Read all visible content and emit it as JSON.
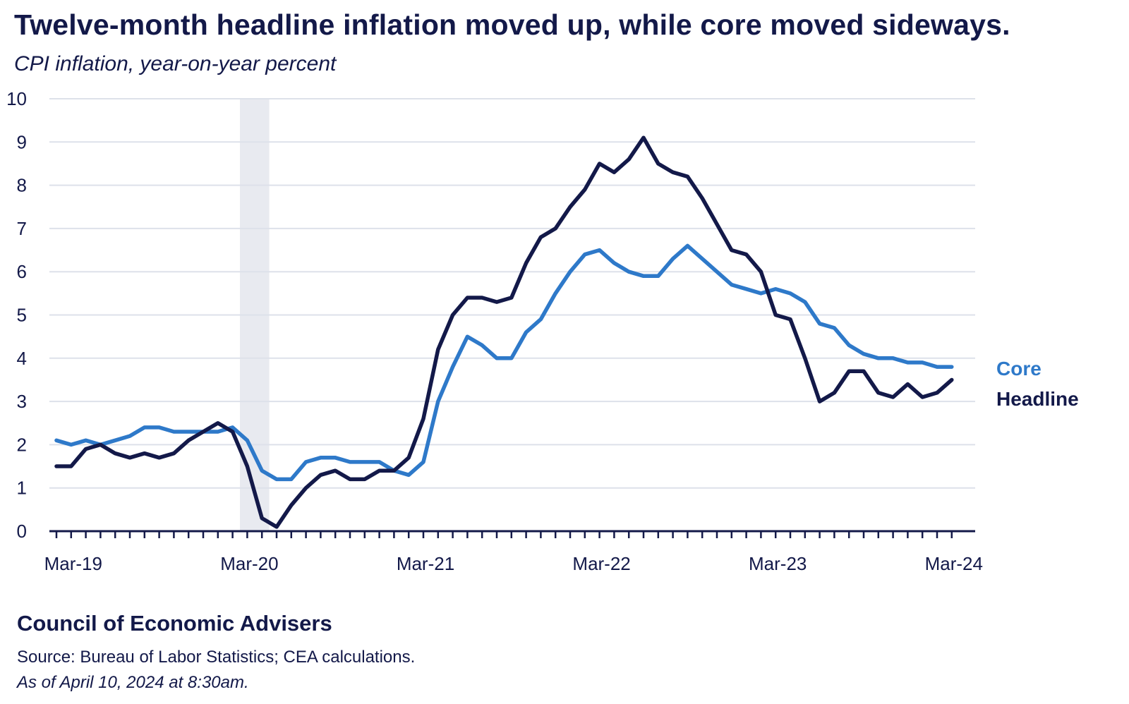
{
  "header": {
    "title": "Twelve-month headline inflation moved up, while core moved sideways.",
    "subtitle": "CPI inflation, year-on-year percent"
  },
  "footer": {
    "org": "Council of Economic Advisers",
    "source": "Source: Bureau of Labor Statistics; CEA calculations.",
    "as_of": "As of April 10, 2024 at 8:30am."
  },
  "colors": {
    "headline": "#131949",
    "core": "#2E79C9",
    "grid": "#DDE1EA",
    "shading": "#E8EAF0",
    "axis": "#131949"
  },
  "chart_data": {
    "type": "line",
    "x": [
      "Feb-19",
      "Mar-19",
      "Apr-19",
      "May-19",
      "Jun-19",
      "Jul-19",
      "Aug-19",
      "Sep-19",
      "Oct-19",
      "Nov-19",
      "Dec-19",
      "Jan-20",
      "Feb-20",
      "Mar-20",
      "Apr-20",
      "May-20",
      "Jun-20",
      "Jul-20",
      "Aug-20",
      "Sep-20",
      "Oct-20",
      "Nov-20",
      "Dec-20",
      "Jan-21",
      "Feb-21",
      "Mar-21",
      "Apr-21",
      "May-21",
      "Jun-21",
      "Jul-21",
      "Aug-21",
      "Sep-21",
      "Oct-21",
      "Nov-21",
      "Dec-21",
      "Jan-22",
      "Feb-22",
      "Mar-22",
      "Apr-22",
      "May-22",
      "Jun-22",
      "Jul-22",
      "Aug-22",
      "Sep-22",
      "Oct-22",
      "Nov-22",
      "Dec-22",
      "Jan-23",
      "Feb-23",
      "Mar-23",
      "Apr-23",
      "May-23",
      "Jun-23",
      "Jul-23",
      "Aug-23",
      "Sep-23",
      "Oct-23",
      "Nov-23",
      "Dec-23",
      "Jan-24",
      "Feb-24",
      "Mar-24"
    ],
    "series": [
      {
        "name": "Core",
        "color_key": "core",
        "values": [
          2.1,
          2.0,
          2.1,
          2.0,
          2.1,
          2.2,
          2.4,
          2.4,
          2.3,
          2.3,
          2.3,
          2.3,
          2.4,
          2.1,
          1.4,
          1.2,
          1.2,
          1.6,
          1.7,
          1.7,
          1.6,
          1.6,
          1.6,
          1.4,
          1.3,
          1.6,
          3.0,
          3.8,
          4.5,
          4.3,
          4.0,
          4.0,
          4.6,
          4.9,
          5.5,
          6.0,
          6.4,
          6.5,
          6.2,
          6.0,
          5.9,
          5.9,
          6.3,
          6.6,
          6.3,
          6.0,
          5.7,
          5.6,
          5.5,
          5.6,
          5.5,
          5.3,
          4.8,
          4.7,
          4.3,
          4.1,
          4.0,
          4.0,
          3.9,
          3.9,
          3.8,
          3.8
        ]
      },
      {
        "name": "Headline",
        "color_key": "headline",
        "values": [
          1.5,
          1.5,
          1.9,
          2.0,
          1.8,
          1.7,
          1.8,
          1.7,
          1.8,
          2.1,
          2.3,
          2.5,
          2.3,
          1.5,
          0.3,
          0.1,
          0.6,
          1.0,
          1.3,
          1.4,
          1.2,
          1.2,
          1.4,
          1.4,
          1.7,
          2.6,
          4.2,
          5.0,
          5.4,
          5.4,
          5.3,
          5.4,
          6.2,
          6.8,
          7.0,
          7.5,
          7.9,
          8.5,
          8.3,
          8.6,
          9.1,
          8.5,
          8.3,
          8.2,
          7.7,
          7.1,
          6.5,
          6.4,
          6.0,
          5.0,
          4.9,
          4.0,
          3.0,
          3.2,
          3.7,
          3.7,
          3.2,
          3.1,
          3.4,
          3.1,
          3.2,
          3.5
        ]
      }
    ],
    "x_tick_labels": [
      "Mar-19",
      "Mar-20",
      "Mar-21",
      "Mar-22",
      "Mar-23",
      "Mar-24"
    ],
    "y_ticks": [
      0,
      1,
      2,
      3,
      4,
      5,
      6,
      7,
      8,
      9,
      10
    ],
    "ylim": [
      0,
      10
    ],
    "shaded_periods": [
      {
        "start": "Mar-20",
        "end": "Apr-20"
      }
    ],
    "grid": "horizontal",
    "legend": "direct-label-right",
    "title": "Twelve-month headline inflation moved up, while core moved sideways.",
    "ylabel": "CPI inflation, year-on-year percent",
    "xlabel": ""
  }
}
